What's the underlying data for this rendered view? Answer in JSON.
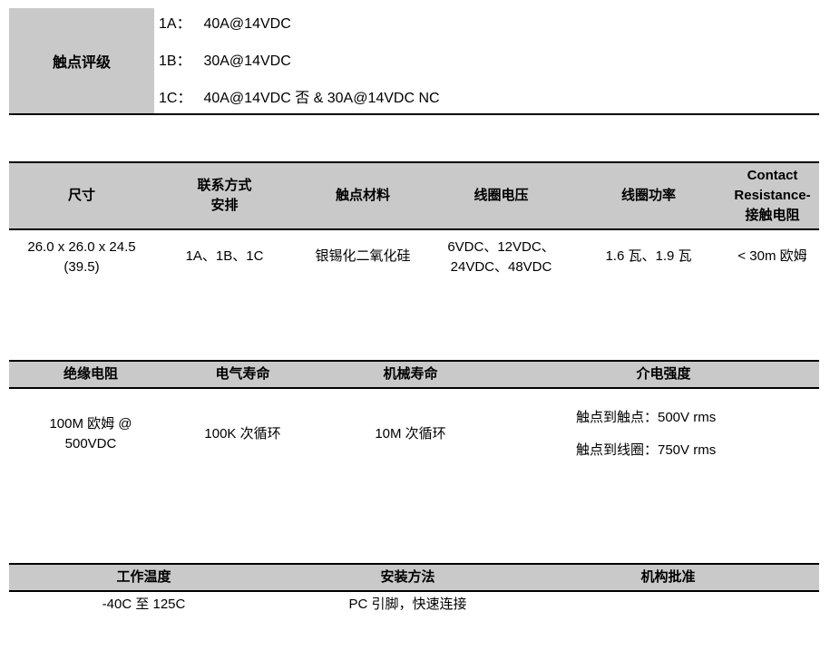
{
  "colors": {
    "header_fill": "#c9c9c9",
    "border": "#000000",
    "text": "#000000"
  },
  "contact_rating": {
    "title": "触点评级",
    "rows": [
      {
        "label": "1A：",
        "value": "40A@14VDC"
      },
      {
        "label": "1B：",
        "value": "30A@14VDC"
      },
      {
        "label": "1C：",
        "value": "40A@14VDC 否 & 30A@14VDC NC"
      }
    ]
  },
  "main_table": {
    "headers": {
      "dimensions": "尺寸",
      "arrangement_l1": "联系方式",
      "arrangement_l2": "安排",
      "material": "触点材料",
      "coil_voltage": "线圈电压",
      "coil_power": "线圈功率",
      "resistance_l1": "Contact",
      "resistance_l2": "Resistance-",
      "resistance_l3": "接触电阻"
    },
    "row": {
      "dimensions_l1": "26.0 x 26.0 x 24.5",
      "dimensions_l2": "(39.5)",
      "arrangement": "1A、1B、1C",
      "material": "银锡化二氧化硅",
      "coil_voltage_l1": "6VDC、12VDC、",
      "coil_voltage_l2": "24VDC、48VDC",
      "coil_power": "1.6 瓦、1.9 瓦",
      "resistance": "< 30m 欧姆"
    }
  },
  "life_table": {
    "headers": {
      "insulation": "绝缘电阻",
      "electrical": "电气寿命",
      "mechanical": "机械寿命",
      "dielectric": "介电强度"
    },
    "row": {
      "insulation_l1": "100M 欧姆 @",
      "insulation_l2": "500VDC",
      "electrical": "100K 次循环",
      "mechanical": "10M 次循环",
      "dielectric_l1": "触点到触点：500V rms",
      "dielectric_l2": "触点到线圈：750V rms"
    }
  },
  "env_table": {
    "headers": {
      "temperature": "工作温度",
      "mounting": "安装方法",
      "approvals": "机构批准"
    },
    "row": {
      "temperature": "-40C 至 125C",
      "mounting": "PC 引脚，快速连接",
      "approvals": ""
    }
  }
}
